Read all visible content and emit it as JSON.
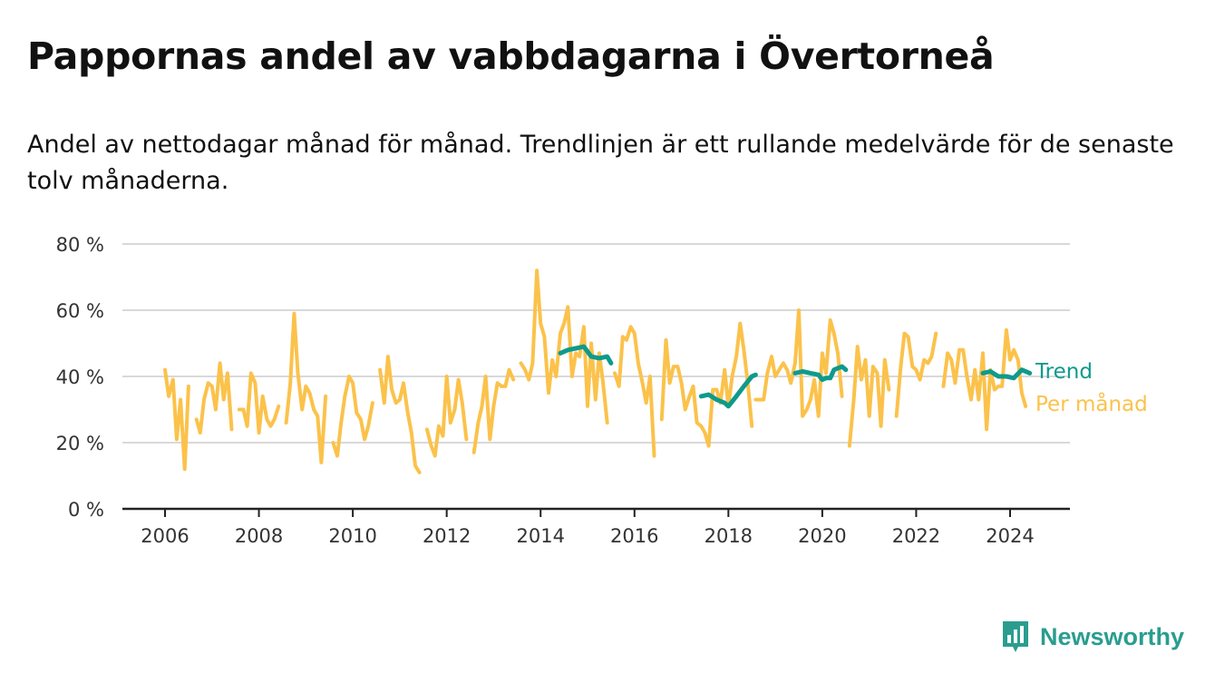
{
  "title": "Pappornas andel av vabbdagarna i Övertorneå",
  "subtitle": "Andel av nettodagar månad för månad. Trendlinjen är ett rullande medelvärde för de senaste tolv månaderna.",
  "brand": "Newsworthy",
  "colors": {
    "monthly": "#fbc24b",
    "trend": "#0e9a8c",
    "grid": "#d9d9d9",
    "axis": "#222222",
    "brand": "#2a9d8f"
  },
  "chart_data": {
    "type": "line",
    "ylim": [
      0,
      80
    ],
    "y_ticks": [
      0,
      20,
      40,
      60,
      80
    ],
    "y_tick_labels": [
      "0 %",
      "20 %",
      "40 %",
      "60 %",
      "80 %"
    ],
    "x_ticks": [
      2006,
      2008,
      2010,
      2012,
      2014,
      2016,
      2018,
      2020,
      2022,
      2024
    ],
    "x_tick_labels": [
      "2006",
      "2008",
      "2010",
      "2012",
      "2014",
      "2016",
      "2018",
      "2020",
      "2022",
      "2024"
    ],
    "series": [
      {
        "name": "Per månad",
        "segments": [
          [
            [
              2006.0,
              42
            ],
            [
              2006.08,
              34
            ],
            [
              2006.17,
              39
            ],
            [
              2006.25,
              21
            ],
            [
              2006.33,
              33
            ],
            [
              2006.42,
              12
            ],
            [
              2006.5,
              37
            ]
          ],
          [
            [
              2006.67,
              27
            ],
            [
              2006.75,
              23
            ],
            [
              2006.83,
              33
            ],
            [
              2006.92,
              38
            ],
            [
              2007.0,
              37
            ],
            [
              2007.08,
              30
            ],
            [
              2007.17,
              44
            ],
            [
              2007.25,
              33
            ],
            [
              2007.33,
              41
            ],
            [
              2007.42,
              24
            ]
          ],
          [
            [
              2007.58,
              30
            ],
            [
              2007.67,
              30
            ],
            [
              2007.75,
              25
            ],
            [
              2007.83,
              41
            ],
            [
              2007.92,
              38
            ],
            [
              2008.0,
              23
            ],
            [
              2008.08,
              34
            ],
            [
              2008.17,
              27
            ],
            [
              2008.25,
              25
            ],
            [
              2008.33,
              27
            ],
            [
              2008.42,
              31
            ]
          ],
          [
            [
              2008.58,
              26
            ],
            [
              2008.67,
              38
            ],
            [
              2008.75,
              59
            ],
            [
              2008.83,
              41
            ],
            [
              2008.92,
              30
            ],
            [
              2009.0,
              37
            ],
            [
              2009.08,
              35
            ],
            [
              2009.17,
              30
            ],
            [
              2009.25,
              28
            ],
            [
              2009.33,
              14
            ],
            [
              2009.42,
              34
            ]
          ],
          [
            [
              2009.58,
              20
            ],
            [
              2009.67,
              16
            ],
            [
              2009.75,
              26
            ],
            [
              2009.83,
              34
            ],
            [
              2009.92,
              40
            ],
            [
              2010.0,
              38
            ],
            [
              2010.08,
              29
            ],
            [
              2010.17,
              27
            ],
            [
              2010.25,
              21
            ],
            [
              2010.33,
              25
            ],
            [
              2010.42,
              32
            ]
          ],
          [
            [
              2010.58,
              42
            ],
            [
              2010.67,
              32
            ],
            [
              2010.75,
              46
            ],
            [
              2010.83,
              36
            ],
            [
              2010.92,
              32
            ],
            [
              2011.0,
              33
            ],
            [
              2011.08,
              38
            ],
            [
              2011.17,
              29
            ],
            [
              2011.25,
              23
            ],
            [
              2011.33,
              13
            ],
            [
              2011.42,
              11
            ]
          ],
          [
            [
              2011.58,
              24
            ],
            [
              2011.67,
              19
            ],
            [
              2011.75,
              16
            ],
            [
              2011.83,
              25
            ],
            [
              2011.92,
              22
            ],
            [
              2012.0,
              40
            ],
            [
              2012.08,
              26
            ],
            [
              2012.17,
              30
            ],
            [
              2012.25,
              39
            ],
            [
              2012.33,
              32
            ],
            [
              2012.42,
              21
            ]
          ],
          [
            [
              2012.58,
              17
            ],
            [
              2012.67,
              26
            ],
            [
              2012.75,
              31
            ],
            [
              2012.83,
              40
            ],
            [
              2012.92,
              21
            ],
            [
              2013.0,
              31
            ],
            [
              2013.08,
              38
            ],
            [
              2013.17,
              37
            ],
            [
              2013.25,
              37
            ],
            [
              2013.33,
              42
            ],
            [
              2013.42,
              39
            ]
          ],
          [
            [
              2013.58,
              44
            ],
            [
              2013.67,
              42
            ],
            [
              2013.75,
              39
            ],
            [
              2013.83,
              44
            ],
            [
              2013.92,
              72
            ],
            [
              2014.0,
              56
            ],
            [
              2014.08,
              52
            ],
            [
              2014.17,
              35
            ],
            [
              2014.25,
              45
            ],
            [
              2014.33,
              40
            ],
            [
              2014.42,
              53
            ],
            [
              2014.5,
              56
            ],
            [
              2014.58,
              61
            ],
            [
              2014.67,
              40
            ],
            [
              2014.75,
              47
            ],
            [
              2014.83,
              46
            ],
            [
              2014.92,
              55
            ],
            [
              2015.0,
              31
            ],
            [
              2015.08,
              50
            ],
            [
              2015.17,
              33
            ],
            [
              2015.25,
              47
            ],
            [
              2015.33,
              38
            ],
            [
              2015.42,
              26
            ]
          ],
          [
            [
              2015.58,
              41
            ],
            [
              2015.67,
              37
            ],
            [
              2015.75,
              52
            ],
            [
              2015.83,
              51
            ],
            [
              2015.92,
              55
            ],
            [
              2016.0,
              53
            ],
            [
              2016.08,
              44
            ],
            [
              2016.17,
              38
            ],
            [
              2016.25,
              32
            ],
            [
              2016.33,
              40
            ],
            [
              2016.42,
              16
            ]
          ],
          [
            [
              2016.58,
              27
            ],
            [
              2016.67,
              51
            ],
            [
              2016.75,
              38
            ],
            [
              2016.83,
              43
            ],
            [
              2016.92,
              43
            ],
            [
              2017.0,
              38
            ],
            [
              2017.08,
              30
            ],
            [
              2017.17,
              34
            ],
            [
              2017.25,
              37
            ],
            [
              2017.33,
              26
            ],
            [
              2017.42,
              25
            ],
            [
              2017.5,
              23
            ],
            [
              2017.58,
              19
            ],
            [
              2017.67,
              36
            ],
            [
              2017.75,
              36
            ],
            [
              2017.83,
              32
            ],
            [
              2017.92,
              42
            ],
            [
              2018.0,
              31
            ],
            [
              2018.08,
              40
            ],
            [
              2018.17,
              46
            ],
            [
              2018.25,
              56
            ],
            [
              2018.33,
              48
            ],
            [
              2018.42,
              37
            ],
            [
              2018.5,
              25
            ]
          ],
          [
            [
              2018.58,
              33
            ],
            [
              2018.67,
              33
            ],
            [
              2018.75,
              33
            ],
            [
              2018.83,
              41
            ],
            [
              2018.92,
              46
            ],
            [
              2019.0,
              40
            ],
            [
              2019.08,
              42
            ],
            [
              2019.17,
              44
            ],
            [
              2019.25,
              42
            ],
            [
              2019.33,
              38
            ],
            [
              2019.42,
              44
            ],
            [
              2019.5,
              60
            ],
            [
              2019.58,
              28
            ],
            [
              2019.67,
              30
            ],
            [
              2019.75,
              33
            ],
            [
              2019.83,
              39
            ],
            [
              2019.92,
              28
            ],
            [
              2020.0,
              47
            ],
            [
              2020.08,
              41
            ],
            [
              2020.17,
              57
            ],
            [
              2020.25,
              53
            ],
            [
              2020.33,
              47
            ],
            [
              2020.42,
              34
            ]
          ],
          [
            [
              2020.58,
              19
            ],
            [
              2020.67,
              33
            ],
            [
              2020.75,
              49
            ],
            [
              2020.83,
              39
            ],
            [
              2020.92,
              45
            ],
            [
              2021.0,
              28
            ],
            [
              2021.08,
              43
            ],
            [
              2021.17,
              41
            ],
            [
              2021.25,
              25
            ],
            [
              2021.33,
              45
            ],
            [
              2021.42,
              36
            ]
          ],
          [
            [
              2021.58,
              28
            ],
            [
              2021.67,
              43
            ],
            [
              2021.75,
              53
            ],
            [
              2021.83,
              52
            ],
            [
              2021.92,
              43
            ],
            [
              2022.0,
              42
            ],
            [
              2022.08,
              39
            ],
            [
              2022.17,
              45
            ],
            [
              2022.25,
              44
            ],
            [
              2022.33,
              46
            ],
            [
              2022.42,
              53
            ]
          ],
          [
            [
              2022.58,
              37
            ],
            [
              2022.67,
              47
            ],
            [
              2022.75,
              45
            ],
            [
              2022.83,
              38
            ],
            [
              2022.92,
              48
            ],
            [
              2023.0,
              48
            ],
            [
              2023.08,
              40
            ],
            [
              2023.17,
              33
            ],
            [
              2023.25,
              42
            ],
            [
              2023.33,
              33
            ],
            [
              2023.42,
              47
            ],
            [
              2023.5,
              24
            ],
            [
              2023.58,
              42
            ],
            [
              2023.67,
              36
            ],
            [
              2023.75,
              37
            ],
            [
              2023.83,
              37
            ],
            [
              2023.92,
              54
            ],
            [
              2024.0,
              45
            ],
            [
              2024.08,
              48
            ],
            [
              2024.17,
              45
            ],
            [
              2024.25,
              35
            ],
            [
              2024.33,
              31
            ]
          ]
        ]
      },
      {
        "name": "Trend",
        "segments": [
          [
            [
              2014.42,
              47
            ],
            [
              2014.58,
              48
            ],
            [
              2014.75,
              48.5
            ],
            [
              2014.92,
              49
            ],
            [
              2015.08,
              46
            ],
            [
              2015.25,
              45.5
            ],
            [
              2015.42,
              46
            ],
            [
              2015.5,
              44
            ]
          ],
          [
            [
              2017.42,
              34
            ],
            [
              2017.58,
              34.5
            ],
            [
              2017.75,
              33
            ],
            [
              2017.92,
              32
            ],
            [
              2018.0,
              31
            ],
            [
              2018.17,
              34
            ],
            [
              2018.33,
              37
            ],
            [
              2018.5,
              40
            ],
            [
              2018.58,
              40.5
            ]
          ],
          [
            [
              2019.42,
              41
            ],
            [
              2019.58,
              41.5
            ],
            [
              2019.75,
              41
            ],
            [
              2019.92,
              40.5
            ],
            [
              2020.0,
              39
            ],
            [
              2020.08,
              39.5
            ],
            [
              2020.17,
              39.5
            ],
            [
              2020.25,
              42
            ],
            [
              2020.42,
              43
            ],
            [
              2020.5,
              42
            ]
          ],
          [
            [
              2023.42,
              41
            ],
            [
              2023.58,
              41.5
            ],
            [
              2023.75,
              40
            ],
            [
              2023.92,
              40
            ],
            [
              2024.08,
              39.5
            ],
            [
              2024.25,
              42
            ],
            [
              2024.42,
              41
            ]
          ]
        ]
      }
    ]
  }
}
